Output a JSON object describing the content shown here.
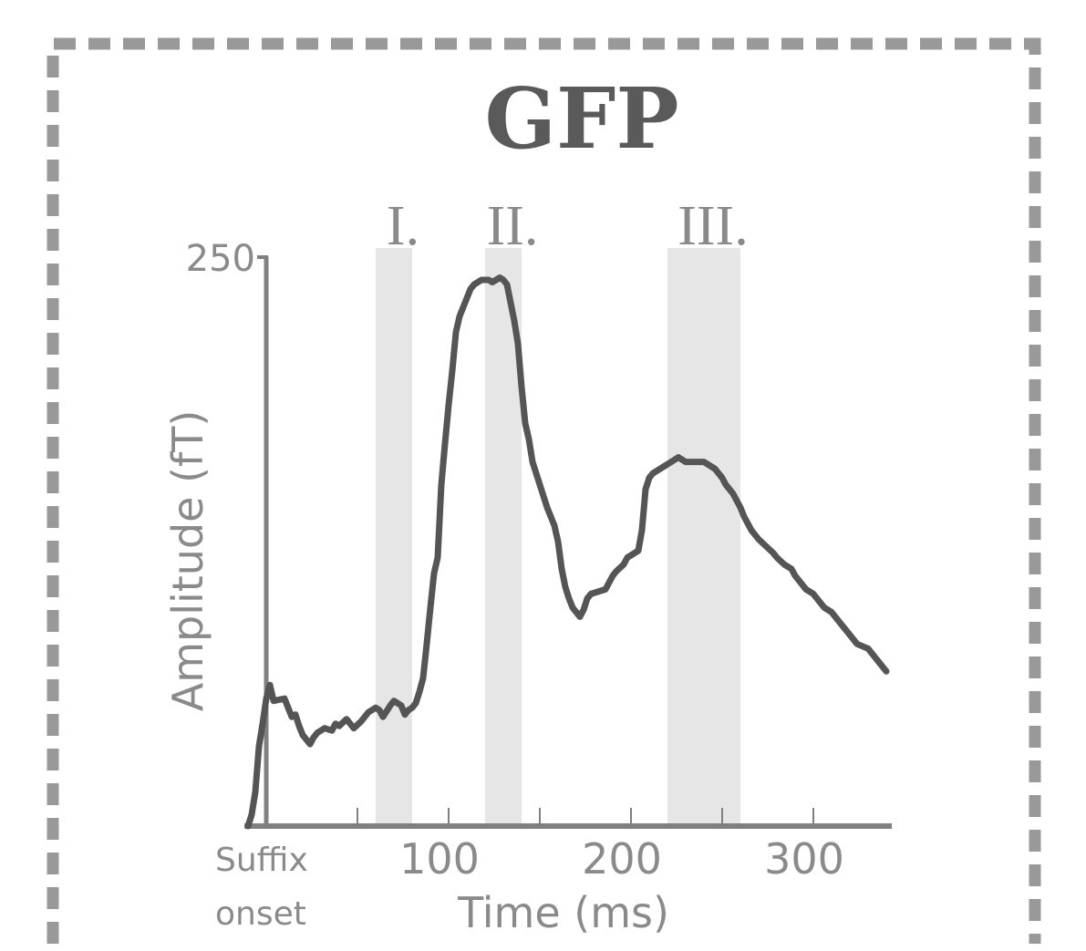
{
  "chart_data": {
    "type": "line",
    "title": "GFP",
    "xlabel": "Time (ms)",
    "ylabel": "Amplitude (fT)",
    "xlim": [
      -10,
      340
    ],
    "ylim": [
      0,
      250
    ],
    "x_ticks": [
      {
        "value": 0,
        "label": "Suffix"
      },
      {
        "value": 50,
        "label": ""
      },
      {
        "value": 100,
        "label": "100"
      },
      {
        "value": 150,
        "label": ""
      },
      {
        "value": 200,
        "label": "200"
      },
      {
        "value": 250,
        "label": ""
      },
      {
        "value": 300,
        "label": "300"
      }
    ],
    "x_tick_sublabel": "onset",
    "y_ticks": [
      {
        "value": 250,
        "label": "250"
      }
    ],
    "grid": false,
    "colors": {
      "line": "#555555",
      "axis": "#808080",
      "text": "#8a8a8a",
      "band": "#e6e6e6",
      "border": "#999999",
      "title": "#5a5a5a"
    },
    "bands": [
      {
        "label": "I.",
        "x0": 60,
        "x1": 80
      },
      {
        "label": "II.",
        "x0": 120,
        "x1": 140
      },
      {
        "label": "III.",
        "x0": 220,
        "x1": 260
      }
    ],
    "series": [
      {
        "x": [
          -10,
          -8,
          -6,
          -4,
          -2,
          0,
          2,
          4,
          10,
          12,
          14,
          16,
          18,
          20,
          24,
          26,
          28,
          32,
          36,
          38,
          40,
          44,
          46,
          48,
          52,
          56,
          60,
          62,
          64,
          68,
          70,
          74,
          76,
          78,
          80,
          82,
          84,
          86,
          88,
          90,
          92,
          94,
          96,
          98,
          100,
          102,
          104,
          106,
          108,
          110,
          112,
          114,
          116,
          118,
          120,
          122,
          124,
          126,
          128,
          130,
          132,
          134,
          136,
          138,
          140,
          142,
          144,
          146,
          150,
          154,
          158,
          160,
          162,
          164,
          166,
          168,
          170,
          172,
          174,
          176,
          178,
          182,
          186,
          188,
          190,
          192,
          196,
          198,
          200,
          202,
          204,
          206,
          208,
          210,
          212,
          214,
          218,
          222,
          226,
          230,
          234,
          240,
          244,
          246,
          248,
          250,
          252,
          254,
          256,
          258,
          260,
          262,
          264,
          266,
          270,
          274,
          278,
          280,
          284,
          288,
          290,
          292,
          294,
          296,
          300,
          302,
          304,
          306,
          310,
          312,
          314,
          316,
          318,
          320,
          322,
          324,
          330,
          332,
          334,
          336,
          338,
          340
        ],
        "y": [
          0,
          5,
          15,
          35,
          45,
          56,
          62,
          55,
          56,
          52,
          48,
          49,
          44,
          40,
          36,
          39,
          41,
          43,
          42,
          45,
          44,
          47,
          45,
          43,
          46,
          50,
          52,
          51,
          48,
          53,
          55,
          53,
          49,
          51,
          52,
          54,
          59,
          65,
          80,
          96,
          111,
          118,
          150,
          168,
          185,
          200,
          217,
          224,
          228,
          232,
          236,
          238,
          239,
          240,
          240,
          240,
          239,
          240,
          241,
          240,
          238,
          230,
          222,
          212,
          193,
          177,
          170,
          160,
          150,
          140,
          132,
          125,
          113,
          105,
          100,
          96,
          94,
          92,
          95,
          100,
          102,
          103,
          104,
          107,
          110,
          112,
          115,
          118,
          119,
          120,
          121,
          130,
          148,
          153,
          155,
          156,
          158,
          160,
          162,
          160,
          160,
          160,
          158,
          157,
          155,
          153,
          150,
          148,
          146,
          143,
          140,
          136,
          133,
          130,
          126,
          123,
          120,
          118,
          115,
          113,
          110,
          108,
          106,
          104,
          102,
          100,
          98,
          96,
          94,
          92,
          90,
          88,
          86,
          84,
          82,
          80,
          78,
          76,
          74,
          72,
          70,
          68
        ]
      }
    ]
  }
}
